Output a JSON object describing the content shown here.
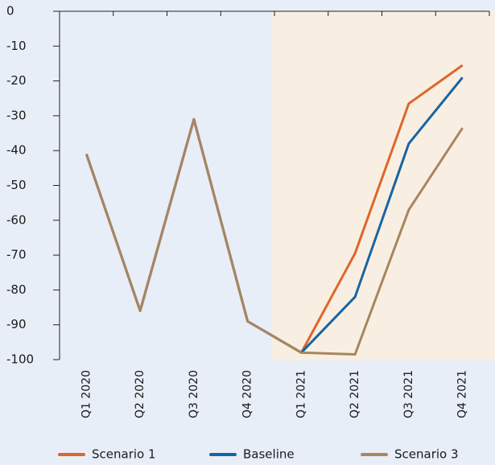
{
  "chart_data": {
    "type": "line",
    "categories": [
      "Q1 2020",
      "Q2 2020",
      "Q3 2020",
      "Q4 2020",
      "Q1 2021",
      "Q2 2021",
      "Q3 2021",
      "Q4 2021"
    ],
    "series": [
      {
        "name": "Scenario 1",
        "color": "#e0652a",
        "values": [
          -41,
          -86,
          -31,
          -89,
          -98,
          -69.5,
          -26.5,
          -15.5
        ]
      },
      {
        "name": "Baseline",
        "color": "#1665a3",
        "values": [
          -41,
          -86,
          -31,
          -89,
          -98,
          -82,
          -38,
          -19
        ]
      },
      {
        "name": "Scenario 3",
        "color": "#a8865e",
        "values": [
          -41,
          -86,
          -31,
          -89,
          -98,
          -98.5,
          -57,
          -33.5
        ]
      }
    ],
    "ylim": [
      -100,
      0
    ],
    "yticks": [
      0,
      -10,
      -20,
      -30,
      -40,
      -50,
      -60,
      -70,
      -80,
      -90,
      -100
    ]
  }
}
